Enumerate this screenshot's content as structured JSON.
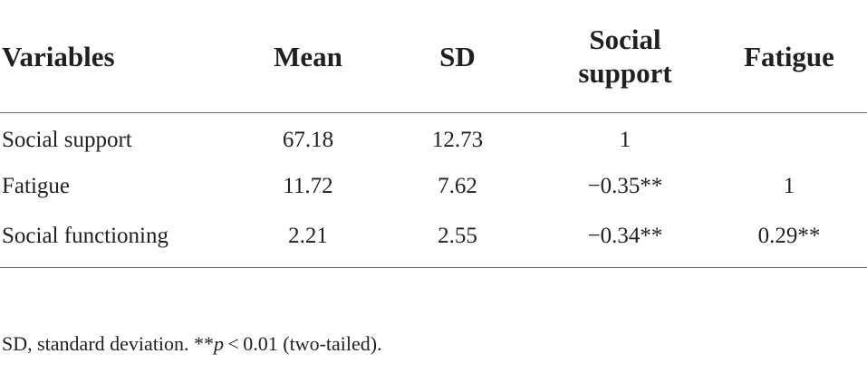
{
  "table": {
    "headers": [
      "Variables",
      "Mean",
      "SD",
      "Social support",
      "Fatigue"
    ],
    "header_lines": {
      "social_support": [
        "Social",
        "support"
      ]
    },
    "rows": [
      [
        "Social support",
        "67.18",
        "12.73",
        "1",
        ""
      ],
      [
        "Fatigue",
        "11.72",
        "7.62",
        "−0.35**",
        "1"
      ],
      [
        "Social functioning",
        "2.21",
        "2.55",
        "−0.34**",
        "0.29**"
      ]
    ]
  },
  "footnote": {
    "prefix": "SD, standard deviation. **",
    "p_symbol": "p",
    "suffix": " < 0.01 (two-tailed)."
  }
}
